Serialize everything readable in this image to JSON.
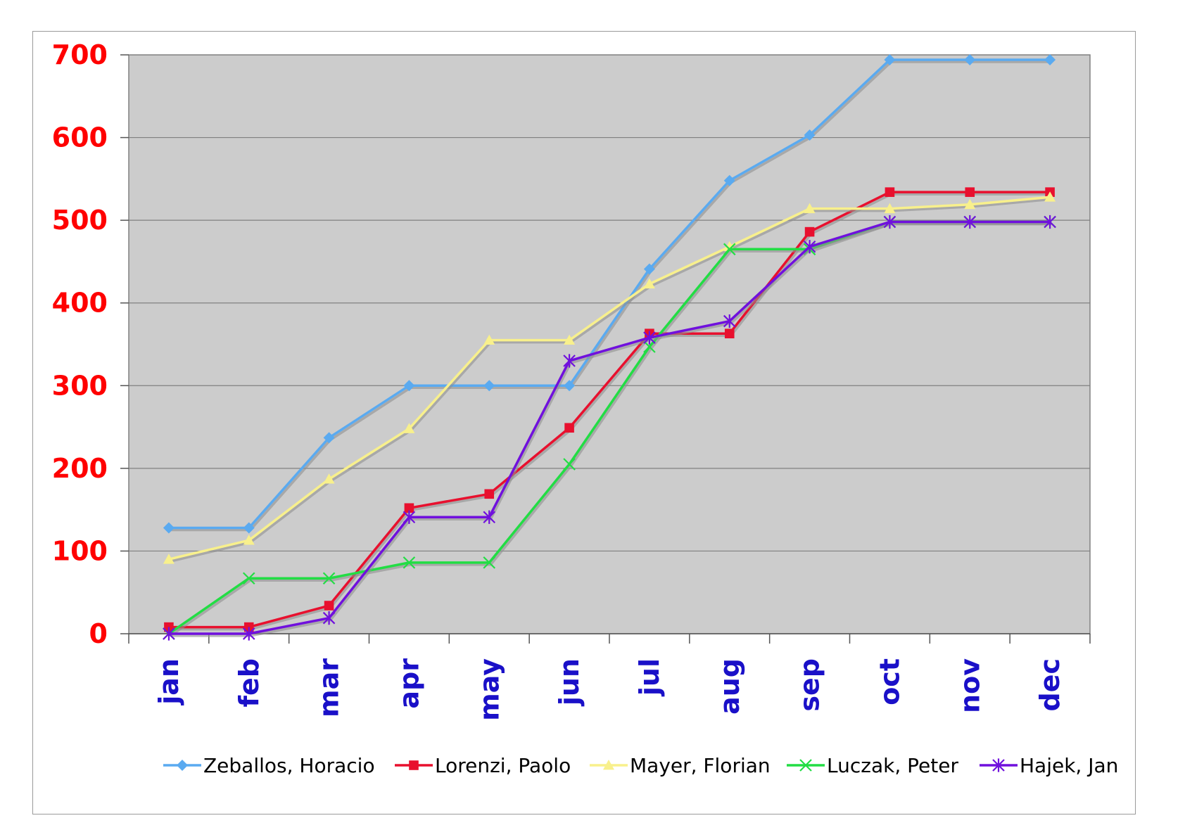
{
  "chart_data": {
    "type": "line",
    "title": "",
    "xlabel": "",
    "ylabel": "",
    "categories": [
      "jan",
      "feb",
      "mar",
      "apr",
      "may",
      "jun",
      "jul",
      "aug",
      "sep",
      "oct",
      "nov",
      "dec"
    ],
    "ylim": [
      0,
      700
    ],
    "yticks": [
      "0",
      "100",
      "200",
      "300",
      "400",
      "500",
      "600",
      "700"
    ],
    "grid": true,
    "plot_background": "#cccccc",
    "legend_position": "bottom",
    "series": [
      {
        "name": "Zeballos, Horacio",
        "color": "#5aaaf0",
        "marker": "diamond",
        "values": [
          128,
          128,
          237,
          300,
          300,
          300,
          441,
          548,
          603,
          694,
          694,
          694
        ]
      },
      {
        "name": "Lorenzi, Paolo",
        "color": "#e8102e",
        "marker": "square",
        "values": [
          8,
          8,
          34,
          152,
          169,
          249,
          363,
          363,
          486,
          534,
          534,
          534
        ]
      },
      {
        "name": "Mayer, Florian",
        "color": "#f8f08c",
        "marker": "triangle",
        "values": [
          90,
          113,
          187,
          248,
          355,
          355,
          423,
          468,
          514,
          514,
          519,
          528
        ]
      },
      {
        "name": "Luczak, Peter",
        "color": "#22dd44",
        "marker": "x",
        "values": [
          0,
          67,
          67,
          86,
          86,
          205,
          347,
          465,
          465,
          498,
          498,
          498
        ]
      },
      {
        "name": "Hajek, Jan",
        "color": "#7010dd",
        "marker": "star",
        "values": [
          0,
          0,
          19,
          141,
          141,
          330,
          358,
          378,
          468,
          498,
          498,
          498
        ]
      }
    ]
  }
}
